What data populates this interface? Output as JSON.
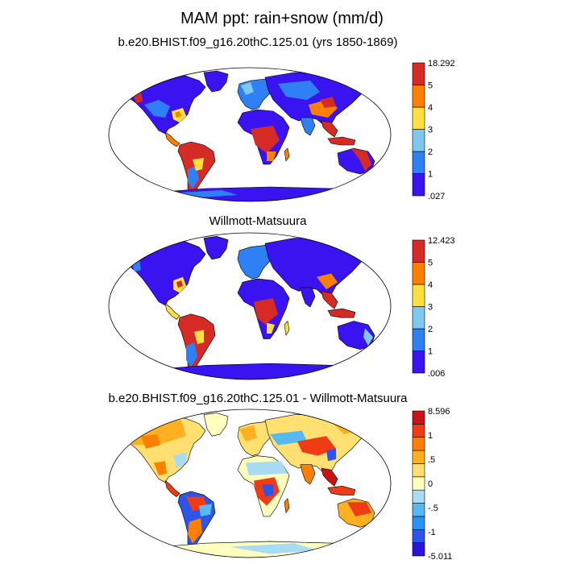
{
  "main_title": "MAM ppt: rain+snow (mm/d)",
  "panels": [
    {
      "title": "b.e20.BHIST.f09_g16.20thC.125.01 (yrs 1850-1869)",
      "colorbar": {
        "colors": [
          "#3a14f0",
          "#2f7ff5",
          "#7ec8f0",
          "#ffe040",
          "#ff7f00",
          "#d62a24"
        ],
        "labels": [
          ".027",
          "1",
          "2",
          "3",
          "4",
          "5",
          "18.292"
        ]
      }
    },
    {
      "title": "Willmott-Matsuura",
      "colorbar": {
        "colors": [
          "#3a14f0",
          "#2f7ff5",
          "#7ec8f0",
          "#ffe040",
          "#ff7f00",
          "#d62a24"
        ],
        "labels": [
          ".006",
          "1",
          "2",
          "3",
          "4",
          "5",
          "12.423"
        ]
      }
    },
    {
      "title": "b.e20.BHIST.f09_g16.20thC.125.01 - Willmott-Matsuura",
      "colorbar": {
        "colors": [
          "#2a14d8",
          "#2f55e8",
          "#2a92f0",
          "#58b8f0",
          "#a8dcf5",
          "#ffffc0",
          "#ffe070",
          "#ffb020",
          "#ff7f00",
          "#f03c14",
          "#c81414"
        ],
        "labels": [
          "-5.011",
          "",
          "-1",
          "",
          "-.5",
          "",
          "0",
          "",
          ".5",
          "",
          "1",
          "",
          "8.596"
        ]
      }
    }
  ]
}
